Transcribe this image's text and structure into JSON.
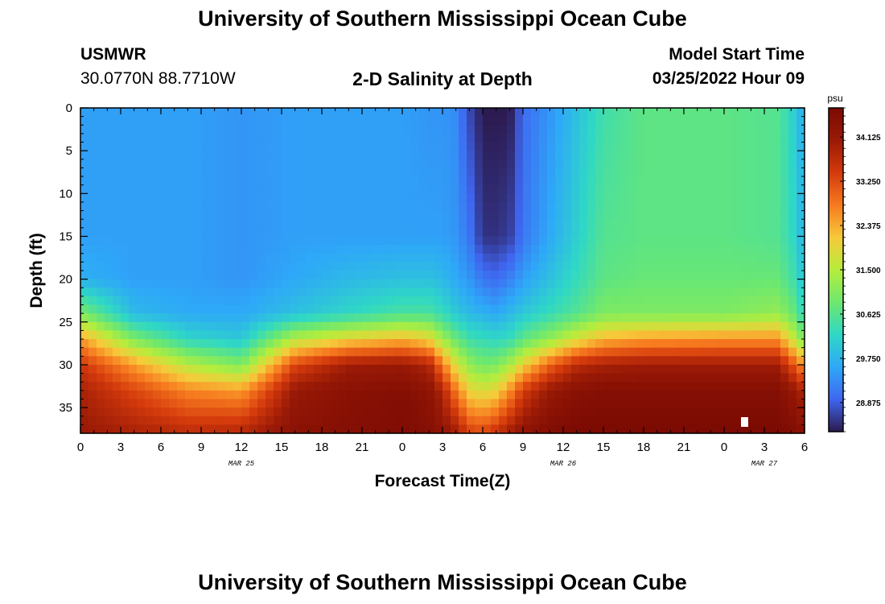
{
  "header": {
    "title": "University of Southern Mississippi Ocean Cube",
    "station": "USMWR",
    "coords": "30.0770N  88.7710W",
    "plot_title": "2-D Salinity at Depth",
    "start_label": "Model Start Time",
    "start_time": "03/25/2022 Hour 09"
  },
  "footer": {
    "title": "University of Southern Mississippi Ocean Cube"
  },
  "chart_data": {
    "type": "heatmap",
    "title": "2-D Salinity at Depth",
    "xlabel": "Forecast Time(Z)",
    "ylabel": "Depth (ft)",
    "x_tick_labels": [
      "0",
      "3",
      "6",
      "9",
      "12",
      "15",
      "18",
      "21",
      "0",
      "3",
      "6",
      "9",
      "12",
      "15",
      "18",
      "21",
      "0",
      "3",
      "6"
    ],
    "x_range_hours": [
      0,
      54
    ],
    "date_labels": [
      {
        "label": "MAR 25",
        "hour": 12
      },
      {
        "label": "MAR 26",
        "hour": 36
      },
      {
        "label": "MAR 27",
        "hour": 51
      }
    ],
    "y_ticks": [
      0,
      5,
      10,
      15,
      20,
      25,
      30,
      35
    ],
    "y_range": [
      0,
      38
    ],
    "colorbar": {
      "unit": "psu",
      "min": 28.3,
      "max": 34.7,
      "ticks": [
        "34.125",
        "33.250",
        "32.375",
        "31.500",
        "30.625",
        "29.750",
        "28.875"
      ]
    },
    "colors": {
      "scale": [
        "#2c1a4e",
        "#3f66f0",
        "#2ea8f8",
        "#2fd8c5",
        "#6ee86e",
        "#b6ed3c",
        "#f7c93a",
        "#f77a1f",
        "#d43a0c",
        "#9a1a06",
        "#7b0a03"
      ]
    },
    "salinity_profile": {
      "note": "salinity (psu) vs forecast hour, interpolated between depth knots",
      "depths": [
        0,
        15,
        20,
        24,
        27,
        30,
        33,
        38
      ],
      "columns": [
        {
          "hour": 0,
          "values": [
            29.5,
            29.5,
            29.7,
            31.0,
            32.5,
            33.5,
            33.9,
            34.1
          ]
        },
        {
          "hour": 4,
          "values": [
            29.5,
            29.5,
            29.5,
            29.8,
            31.0,
            32.5,
            33.3,
            33.9
          ]
        },
        {
          "hour": 8,
          "values": [
            29.5,
            29.5,
            29.5,
            29.6,
            30.2,
            31.5,
            32.7,
            33.7
          ]
        },
        {
          "hour": 12,
          "values": [
            29.4,
            29.4,
            29.4,
            29.6,
            30.0,
            31.0,
            32.5,
            33.8
          ]
        },
        {
          "hour": 16,
          "values": [
            29.5,
            29.5,
            29.6,
            29.9,
            31.5,
            33.3,
            34.1,
            34.4
          ]
        },
        {
          "hour": 20,
          "values": [
            29.5,
            29.5,
            29.8,
            30.2,
            32.0,
            34.0,
            34.4,
            34.5
          ]
        },
        {
          "hour": 24,
          "values": [
            29.5,
            29.5,
            29.9,
            30.5,
            32.3,
            34.1,
            34.5,
            34.6
          ]
        },
        {
          "hour": 26,
          "values": [
            29.4,
            29.5,
            29.9,
            30.5,
            32.0,
            33.8,
            34.3,
            34.5
          ]
        },
        {
          "hour": 27,
          "values": [
            29.4,
            29.5,
            29.8,
            30.3,
            31.3,
            32.8,
            33.8,
            34.3
          ]
        },
        {
          "hour": 28,
          "values": [
            29.3,
            29.4,
            29.6,
            30.0,
            30.8,
            31.8,
            32.8,
            34.0
          ]
        },
        {
          "hour": 29,
          "values": [
            28.7,
            29.1,
            29.4,
            29.8,
            30.4,
            31.2,
            32.0,
            33.4
          ]
        },
        {
          "hour": 30,
          "values": [
            28.3,
            28.5,
            29.1,
            29.7,
            30.3,
            30.9,
            31.8,
            33.3
          ]
        },
        {
          "hour": 31,
          "values": [
            28.3,
            28.5,
            29.0,
            29.6,
            30.2,
            31.0,
            32.0,
            33.6
          ]
        },
        {
          "hour": 32,
          "values": [
            28.3,
            28.6,
            29.2,
            29.8,
            30.3,
            31.4,
            32.6,
            34.0
          ]
        },
        {
          "hour": 33,
          "values": [
            29.0,
            29.1,
            29.5,
            30.0,
            30.7,
            32.0,
            33.4,
            34.3
          ]
        },
        {
          "hour": 35,
          "values": [
            29.4,
            29.6,
            29.9,
            30.3,
            31.2,
            33.0,
            34.1,
            34.6
          ]
        },
        {
          "hour": 37,
          "values": [
            29.9,
            30.1,
            30.3,
            30.6,
            31.8,
            33.7,
            34.4,
            34.7
          ]
        },
        {
          "hour": 39,
          "values": [
            30.4,
            30.6,
            30.7,
            31.0,
            32.3,
            33.9,
            34.5,
            34.7
          ]
        },
        {
          "hour": 42,
          "values": [
            30.7,
            30.7,
            30.8,
            31.0,
            32.5,
            34.0,
            34.5,
            34.7
          ]
        },
        {
          "hour": 48,
          "values": [
            30.7,
            30.7,
            30.8,
            31.0,
            32.6,
            34.0,
            34.5,
            34.7
          ]
        },
        {
          "hour": 52,
          "values": [
            30.6,
            30.6,
            30.8,
            31.2,
            32.6,
            34.0,
            34.5,
            34.7
          ]
        },
        {
          "hour": 53,
          "values": [
            30.2,
            30.3,
            30.5,
            30.9,
            31.8,
            33.3,
            34.2,
            34.6
          ]
        },
        {
          "hour": 54,
          "values": [
            29.6,
            29.7,
            29.9,
            30.2,
            30.9,
            32.5,
            33.8,
            34.4
          ]
        }
      ]
    }
  }
}
